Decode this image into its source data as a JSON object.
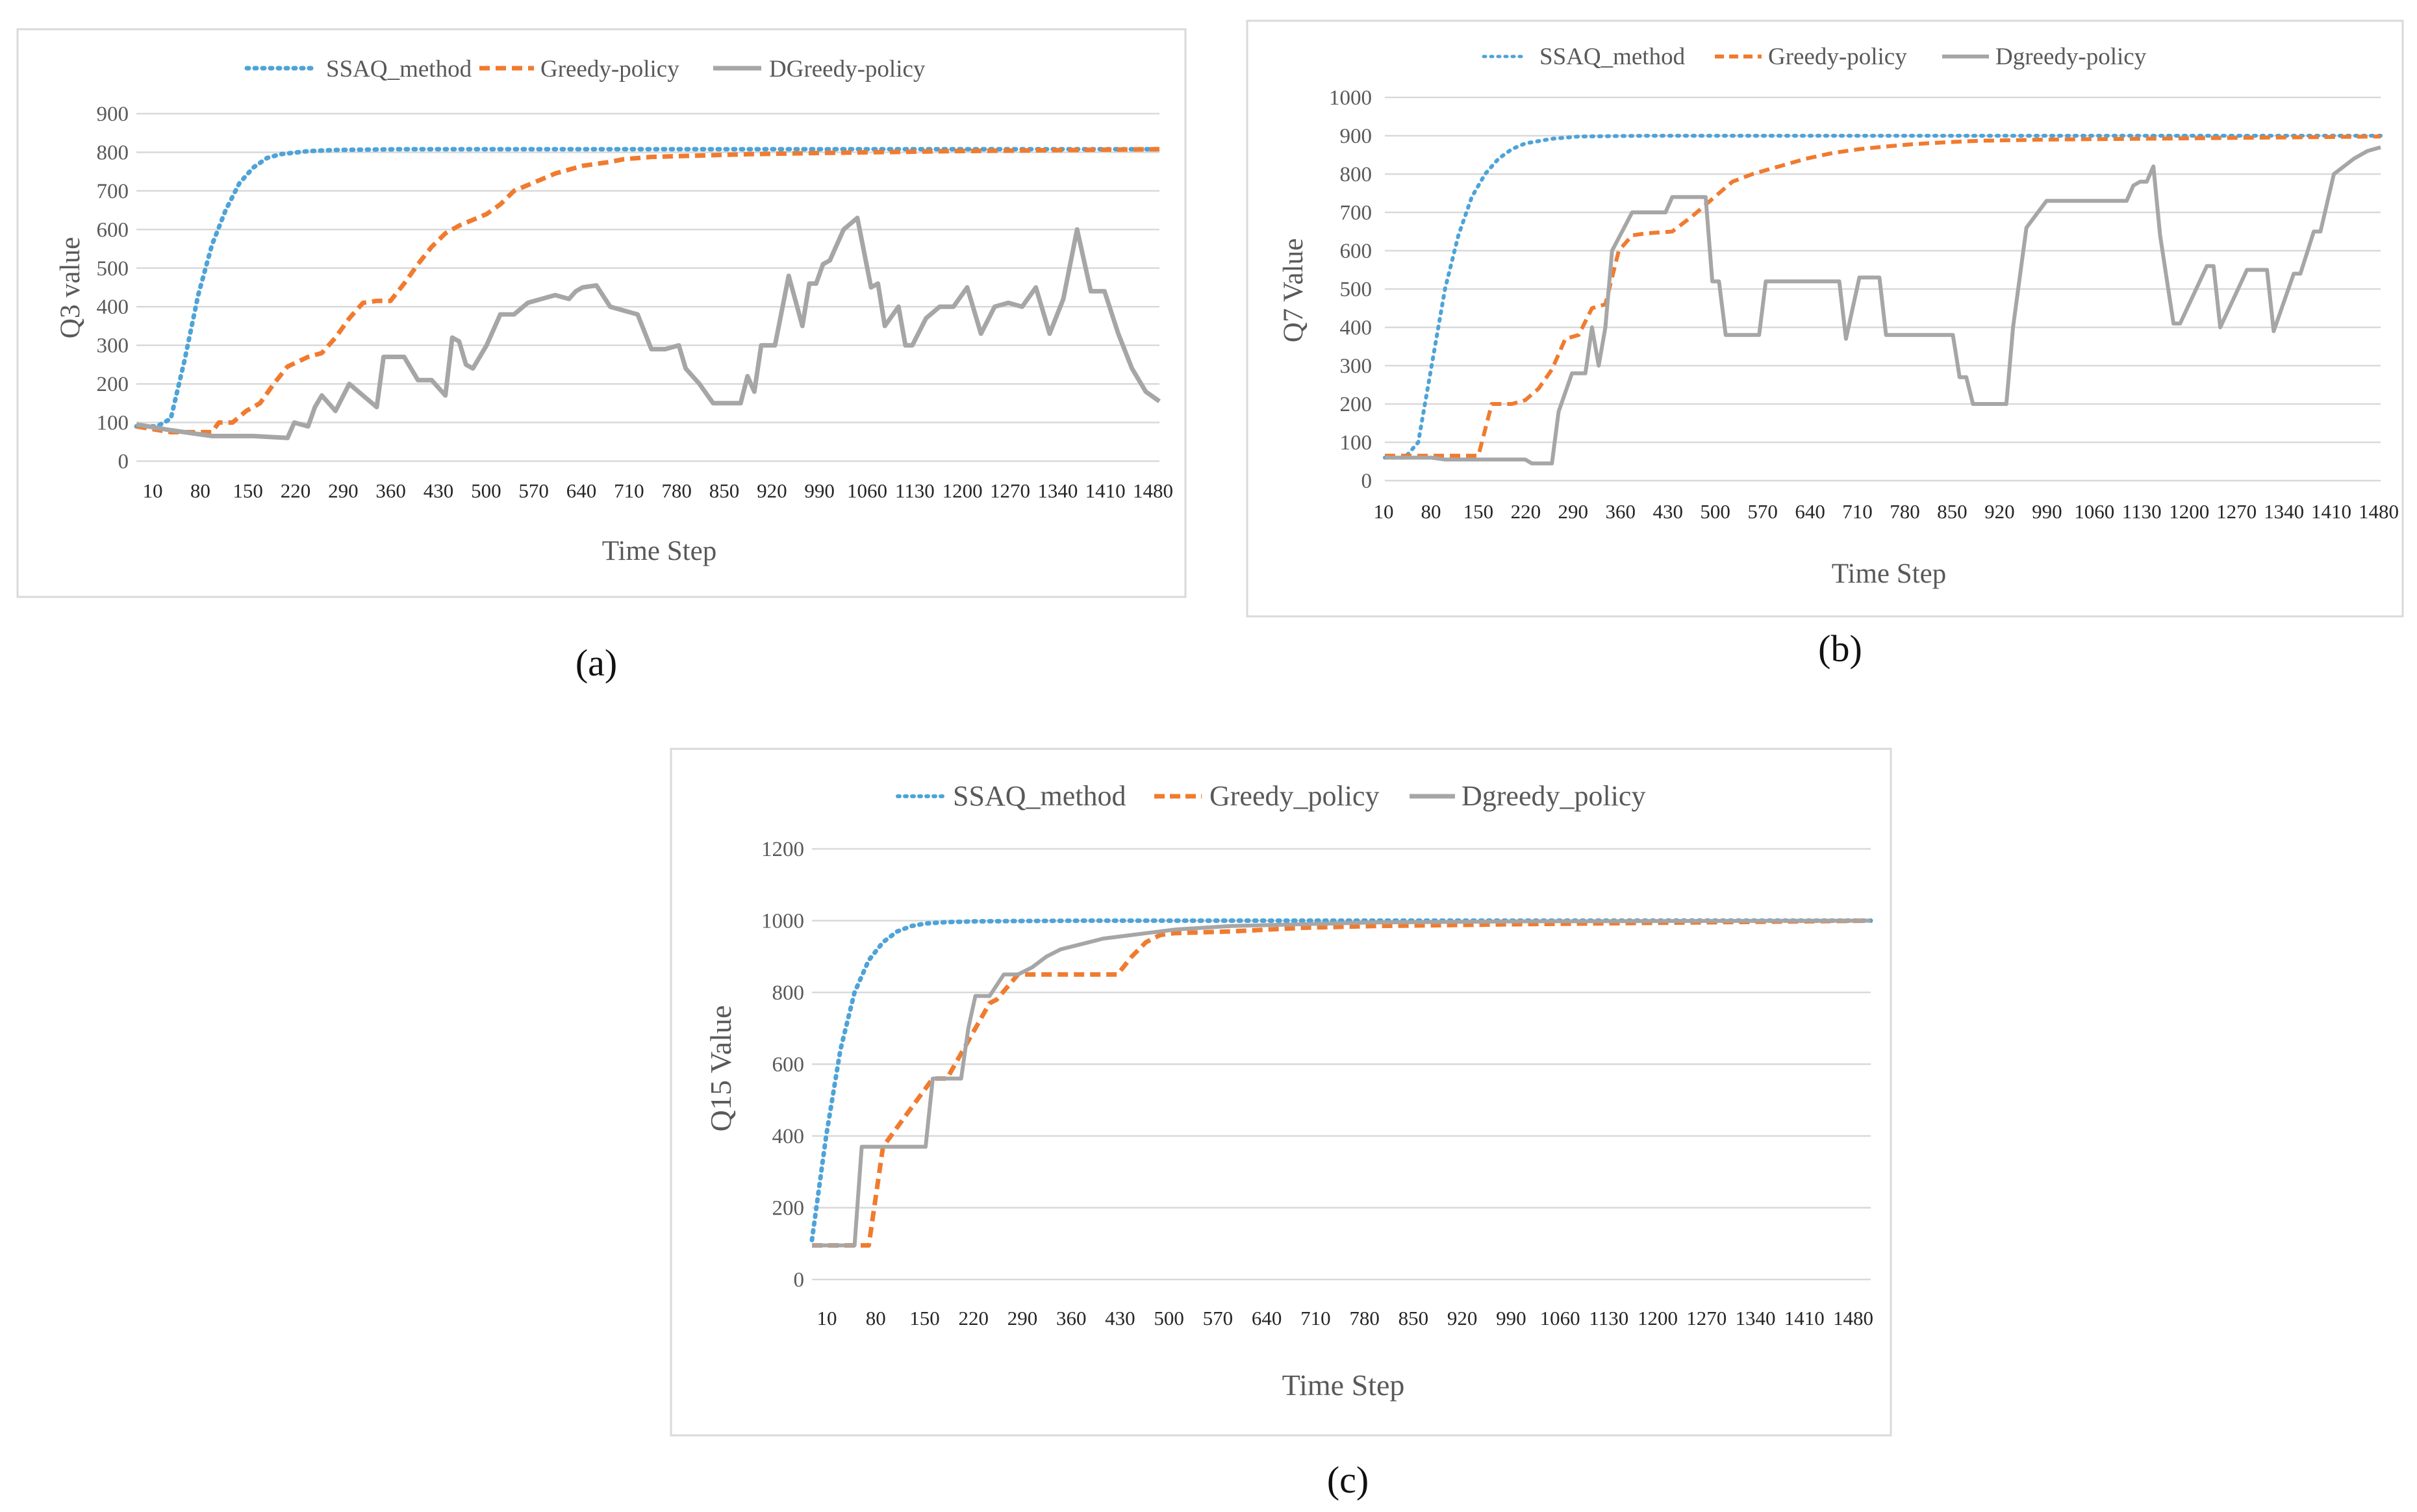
{
  "figure": {
    "captions": [
      "(a)",
      "(b)",
      "(c)"
    ]
  },
  "colors": {
    "ssaq": "#4ea3d8",
    "greedy": "#f07b2f",
    "dgreedy": "#a6a6a6"
  },
  "chart_data": [
    {
      "type": "line",
      "caption": "(a)",
      "xlabel": "Time Step",
      "ylabel": "Q3 value",
      "ylim": [
        0,
        900
      ],
      "yticks": [
        "900",
        "800",
        "700",
        "600",
        "500",
        "400",
        "300",
        "200",
        "100",
        "0"
      ],
      "xticks": [
        "10",
        "80",
        "150",
        "220",
        "290",
        "360",
        "430",
        "500",
        "570",
        "640",
        "710",
        "780",
        "850",
        "920",
        "990",
        "1060",
        "1130",
        "1200",
        "1270",
        "1340",
        "1410",
        "1480"
      ],
      "xlim": [
        10,
        1500
      ],
      "legend_position": "top",
      "legend": [
        "SSAQ_method",
        "Greedy-policy",
        "DGreedy-policy"
      ],
      "series": [
        {
          "name": "SSAQ_method",
          "style": "dotted",
          "color": "#4ea3d8",
          "x": [
            10,
            40,
            60,
            80,
            100,
            120,
            140,
            160,
            180,
            200,
            220,
            260,
            300,
            400,
            1500
          ],
          "y": [
            90,
            90,
            110,
            260,
            430,
            560,
            650,
            720,
            760,
            785,
            795,
            803,
            806,
            808,
            808
          ]
        },
        {
          "name": "Greedy-policy",
          "style": "dashed",
          "color": "#f07b2f",
          "x": [
            10,
            60,
            120,
            130,
            150,
            170,
            190,
            210,
            230,
            260,
            280,
            300,
            320,
            340,
            360,
            380,
            400,
            420,
            440,
            460,
            480,
            500,
            520,
            540,
            560,
            580,
            600,
            620,
            640,
            660,
            680,
            700,
            720,
            760,
            800,
            900,
            1000,
            1200,
            1500
          ],
          "y": [
            90,
            75,
            75,
            100,
            100,
            130,
            150,
            200,
            245,
            270,
            280,
            320,
            370,
            410,
            415,
            415,
            460,
            510,
            555,
            590,
            610,
            625,
            640,
            665,
            700,
            715,
            730,
            745,
            755,
            765,
            770,
            775,
            782,
            788,
            790,
            795,
            798,
            803,
            808
          ]
        },
        {
          "name": "DGreedy-policy",
          "style": "solid",
          "color": "#a6a6a6",
          "x": [
            10,
            60,
            120,
            180,
            230,
            240,
            260,
            270,
            280,
            300,
            320,
            340,
            360,
            370,
            400,
            420,
            440,
            460,
            470,
            480,
            490,
            500,
            520,
            540,
            560,
            580,
            600,
            620,
            640,
            650,
            660,
            680,
            700,
            720,
            740,
            760,
            780,
            800,
            810,
            830,
            850,
            870,
            890,
            900,
            910,
            920,
            940,
            960,
            980,
            990,
            1000,
            1010,
            1020,
            1040,
            1060,
            1080,
            1090,
            1100,
            1120,
            1130,
            1140,
            1160,
            1180,
            1200,
            1220,
            1240,
            1260,
            1280,
            1300,
            1320,
            1340,
            1360,
            1380,
            1400,
            1420,
            1440,
            1460,
            1480,
            1500
          ],
          "y": [
            95,
            80,
            65,
            65,
            60,
            100,
            90,
            140,
            170,
            130,
            200,
            170,
            140,
            270,
            270,
            210,
            210,
            170,
            320,
            310,
            250,
            240,
            300,
            380,
            380,
            410,
            420,
            430,
            420,
            440,
            450,
            455,
            400,
            390,
            380,
            290,
            290,
            300,
            240,
            200,
            150,
            150,
            150,
            220,
            180,
            300,
            300,
            480,
            350,
            460,
            460,
            510,
            520,
            600,
            630,
            450,
            460,
            350,
            400,
            300,
            300,
            370,
            400,
            400,
            450,
            330,
            400,
            410,
            400,
            450,
            330,
            420,
            600,
            440,
            440,
            330,
            240,
            180,
            155
          ]
        }
      ]
    },
    {
      "type": "line",
      "caption": "(b)",
      "xlabel": "Time Step",
      "ylabel": "Q7 Value",
      "ylim": [
        0,
        1000
      ],
      "yticks": [
        "1000",
        "900",
        "800",
        "700",
        "600",
        "500",
        "400",
        "300",
        "200",
        "100",
        "0"
      ],
      "xticks": [
        "10",
        "80",
        "150",
        "220",
        "290",
        "360",
        "430",
        "500",
        "570",
        "640",
        "710",
        "780",
        "850",
        "920",
        "990",
        "1060",
        "1130",
        "1200",
        "1270",
        "1340",
        "1410",
        "1480"
      ],
      "xlim": [
        10,
        1500
      ],
      "legend_position": "top",
      "legend": [
        "SSAQ_method",
        "Greedy-policy",
        "Dgreedy-policy"
      ],
      "series": [
        {
          "name": "SSAQ_method",
          "style": "dotted",
          "color": "#4ea3d8",
          "x": [
            10,
            40,
            60,
            80,
            100,
            120,
            140,
            160,
            180,
            200,
            220,
            260,
            300,
            400,
            1500
          ],
          "y": [
            60,
            60,
            100,
            300,
            500,
            640,
            740,
            800,
            840,
            865,
            880,
            892,
            898,
            900,
            900
          ]
        },
        {
          "name": "Greedy-policy",
          "style": "dashed",
          "color": "#f07b2f",
          "x": [
            10,
            150,
            170,
            200,
            220,
            240,
            260,
            280,
            300,
            320,
            340,
            360,
            380,
            400,
            440,
            470,
            490,
            510,
            530,
            560,
            600,
            640,
            680,
            720,
            760,
            800,
            850,
            900,
            1000,
            1200,
            1500
          ],
          "y": [
            65,
            65,
            200,
            200,
            210,
            240,
            290,
            370,
            380,
            450,
            460,
            600,
            640,
            645,
            650,
            690,
            720,
            750,
            780,
            800,
            820,
            840,
            855,
            865,
            872,
            878,
            883,
            887,
            890,
            893,
            898
          ]
        },
        {
          "name": "Dgreedy-policy",
          "style": "solid",
          "color": "#a6a6a6",
          "x": [
            10,
            60,
            80,
            100,
            220,
            230,
            260,
            270,
            290,
            310,
            320,
            330,
            340,
            350,
            380,
            400,
            430,
            440,
            490,
            500,
            510,
            520,
            530,
            570,
            580,
            690,
            700,
            720,
            750,
            760,
            860,
            870,
            880,
            890,
            900,
            940,
            950,
            970,
            1000,
            1010,
            1120,
            1130,
            1140,
            1150,
            1160,
            1170,
            1190,
            1200,
            1240,
            1250,
            1260,
            1300,
            1330,
            1340,
            1370,
            1380,
            1400,
            1410,
            1430,
            1460,
            1480,
            1500
          ],
          "y": [
            60,
            60,
            60,
            55,
            55,
            45,
            45,
            180,
            280,
            280,
            400,
            300,
            400,
            600,
            700,
            700,
            700,
            740,
            740,
            520,
            520,
            380,
            380,
            380,
            520,
            520,
            370,
            530,
            530,
            380,
            380,
            270,
            270,
            200,
            200,
            200,
            400,
            660,
            730,
            730,
            730,
            770,
            780,
            780,
            820,
            640,
            410,
            410,
            560,
            560,
            400,
            550,
            550,
            390,
            540,
            540,
            650,
            650,
            800,
            840,
            860,
            870
          ]
        }
      ]
    },
    {
      "type": "line",
      "caption": "(c)",
      "xlabel": "Time Step",
      "ylabel": "Q15 Value",
      "ylim": [
        0,
        1200
      ],
      "yticks": [
        "1200",
        "1000",
        "800",
        "600",
        "400",
        "200",
        "0"
      ],
      "xticks": [
        "10",
        "80",
        "150",
        "220",
        "290",
        "360",
        "430",
        "500",
        "570",
        "640",
        "710",
        "780",
        "850",
        "920",
        "990",
        "1060",
        "1130",
        "1200",
        "1270",
        "1340",
        "1410",
        "1480"
      ],
      "xlim": [
        10,
        1500
      ],
      "legend_position": "top",
      "legend": [
        "SSAQ_method",
        "Greedy_policy",
        "Dgreedy_policy"
      ],
      "series": [
        {
          "name": "SSAQ_method",
          "style": "dotted",
          "color": "#4ea3d8",
          "x": [
            10,
            30,
            50,
            70,
            90,
            110,
            130,
            150,
            170,
            200,
            240,
            300,
            400,
            1500
          ],
          "y": [
            110,
            400,
            640,
            800,
            890,
            940,
            970,
            985,
            992,
            996,
            998,
            999,
            1000,
            1000
          ]
        },
        {
          "name": "Greedy_policy",
          "style": "dashed",
          "color": "#f07b2f",
          "x": [
            10,
            90,
            110,
            180,
            200,
            240,
            260,
            270,
            300,
            310,
            440,
            460,
            480,
            500,
            520,
            600,
            700,
            800,
            1000,
            1500
          ],
          "y": [
            95,
            95,
            370,
            560,
            560,
            700,
            770,
            780,
            850,
            850,
            850,
            900,
            940,
            960,
            965,
            970,
            980,
            985,
            990,
            1000
          ]
        },
        {
          "name": "Dgreedy_policy",
          "style": "solid",
          "color": "#a6a6a6",
          "x": [
            10,
            60,
            70,
            80,
            170,
            180,
            220,
            230,
            240,
            260,
            280,
            300,
            320,
            340,
            360,
            380,
            400,
            420,
            460,
            480,
            500,
            520,
            600,
            700,
            800,
            1000,
            1500
          ],
          "y": [
            95,
            95,
            95,
            370,
            370,
            560,
            560,
            700,
            790,
            790,
            850,
            850,
            870,
            900,
            920,
            930,
            940,
            950,
            960,
            965,
            970,
            975,
            985,
            990,
            995,
            998,
            1000
          ]
        }
      ]
    }
  ]
}
